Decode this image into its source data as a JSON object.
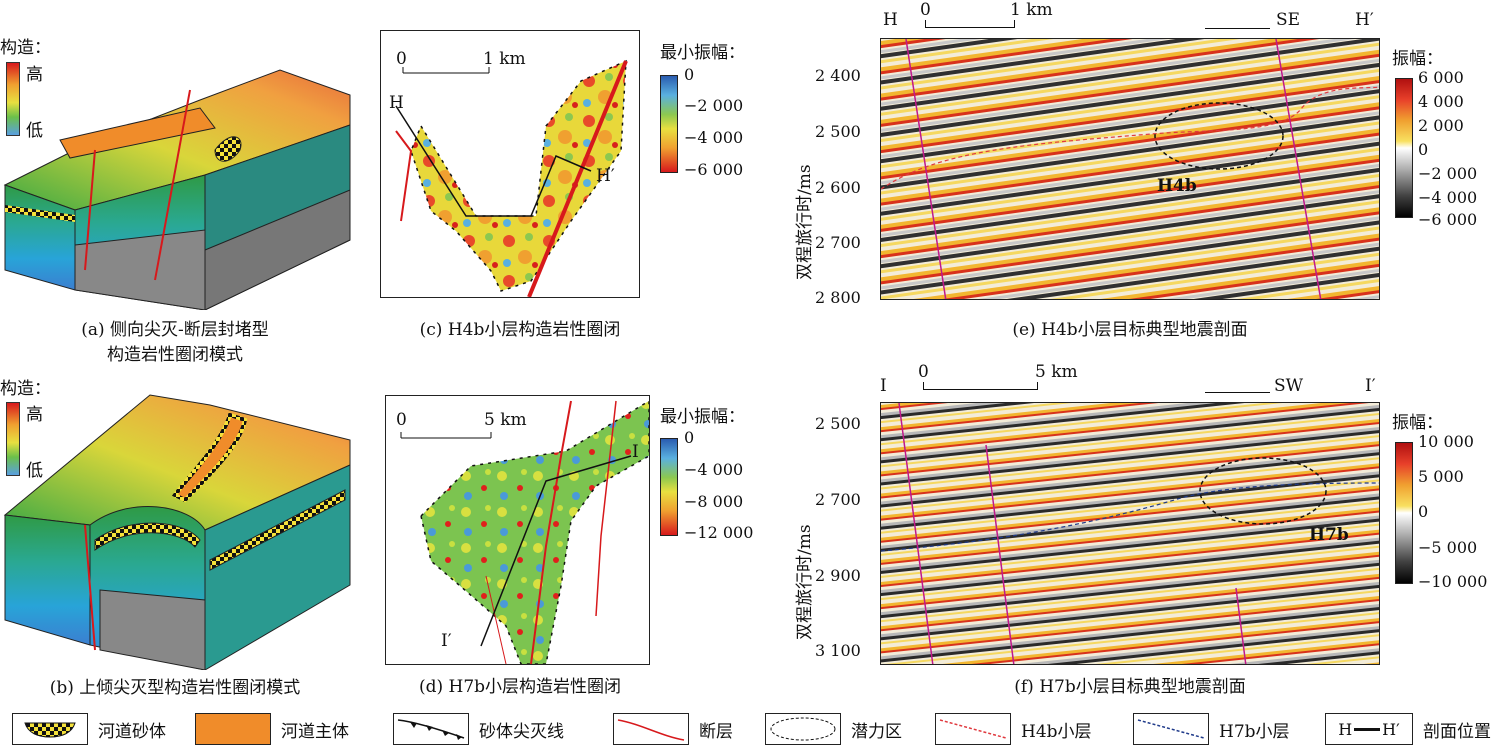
{
  "panel_a": {
    "legend_title": "构造：",
    "high": "高",
    "low": "低",
    "caption_line1": "(a) 侧向尖灭-断层封堵型",
    "caption_line2": "构造岩性圈闭模式"
  },
  "panel_b": {
    "legend_title": "构造：",
    "high": "高",
    "low": "低",
    "caption": "(b) 上倾尖灭型构造岩性圈闭模式"
  },
  "panel_c": {
    "scale_0": "0",
    "scale_1": "1 km",
    "start_label": "H",
    "end_label": "H′",
    "colorbar_title": "最小振幅：",
    "colorbar_ticks": [
      "0",
      "−2 000",
      "−4 000",
      "−6 000"
    ],
    "caption": "(c) H4b小层构造岩性圈闭"
  },
  "panel_d": {
    "scale_0": "0",
    "scale_1": "5 km",
    "start_label": "I",
    "end_label": "I′",
    "colorbar_title": "最小振幅：",
    "colorbar_ticks": [
      "0",
      "−4 000",
      "−8 000",
      "−12 000"
    ],
    "caption": "(d) H7b小层构造岩性圈闭"
  },
  "panel_e": {
    "left_label": "H",
    "right_label": "H′",
    "scale_0": "0",
    "scale_1": "1 km",
    "direction": "SE",
    "ylabel": "双程旅行时/ms",
    "yticks": [
      "2 400",
      "2 500",
      "2 600",
      "2 700",
      "2 800"
    ],
    "target_label": "H4b",
    "colorbar_title": "振幅：",
    "colorbar_ticks": [
      "6 000",
      "4 000",
      "2 000",
      "0",
      "−2 000",
      "−4 000",
      "−6 000"
    ],
    "caption": "(e) H4b小层目标典型地震剖面"
  },
  "panel_f": {
    "left_label": "I",
    "right_label": "I′",
    "scale_0": "0",
    "scale_1": "5 km",
    "direction": "SW",
    "ylabel": "双程旅行时/ms",
    "yticks": [
      "2 500",
      "2 700",
      "2 900",
      "3 100"
    ],
    "target_label": "H7b",
    "colorbar_title": "振幅：",
    "colorbar_ticks": [
      "10 000",
      "5 000",
      "0",
      "−5 000",
      "−10 000"
    ],
    "caption": "(f) H7b小层目标典型地震剖面"
  },
  "legend": {
    "items": [
      "河道砂体",
      "河道主体",
      "砂体尖灭线",
      "断层",
      "潜力区",
      "H4b小层",
      "H7b小层",
      "剖面位置"
    ],
    "section_symbol_left": "H",
    "section_symbol_right": "H′"
  },
  "colors": {
    "fault": "#d7191c",
    "h4b": "#e0393e",
    "h7b": "#1f3a8a",
    "channel_body": "#f08c2a",
    "sand": "#f5e23a"
  }
}
